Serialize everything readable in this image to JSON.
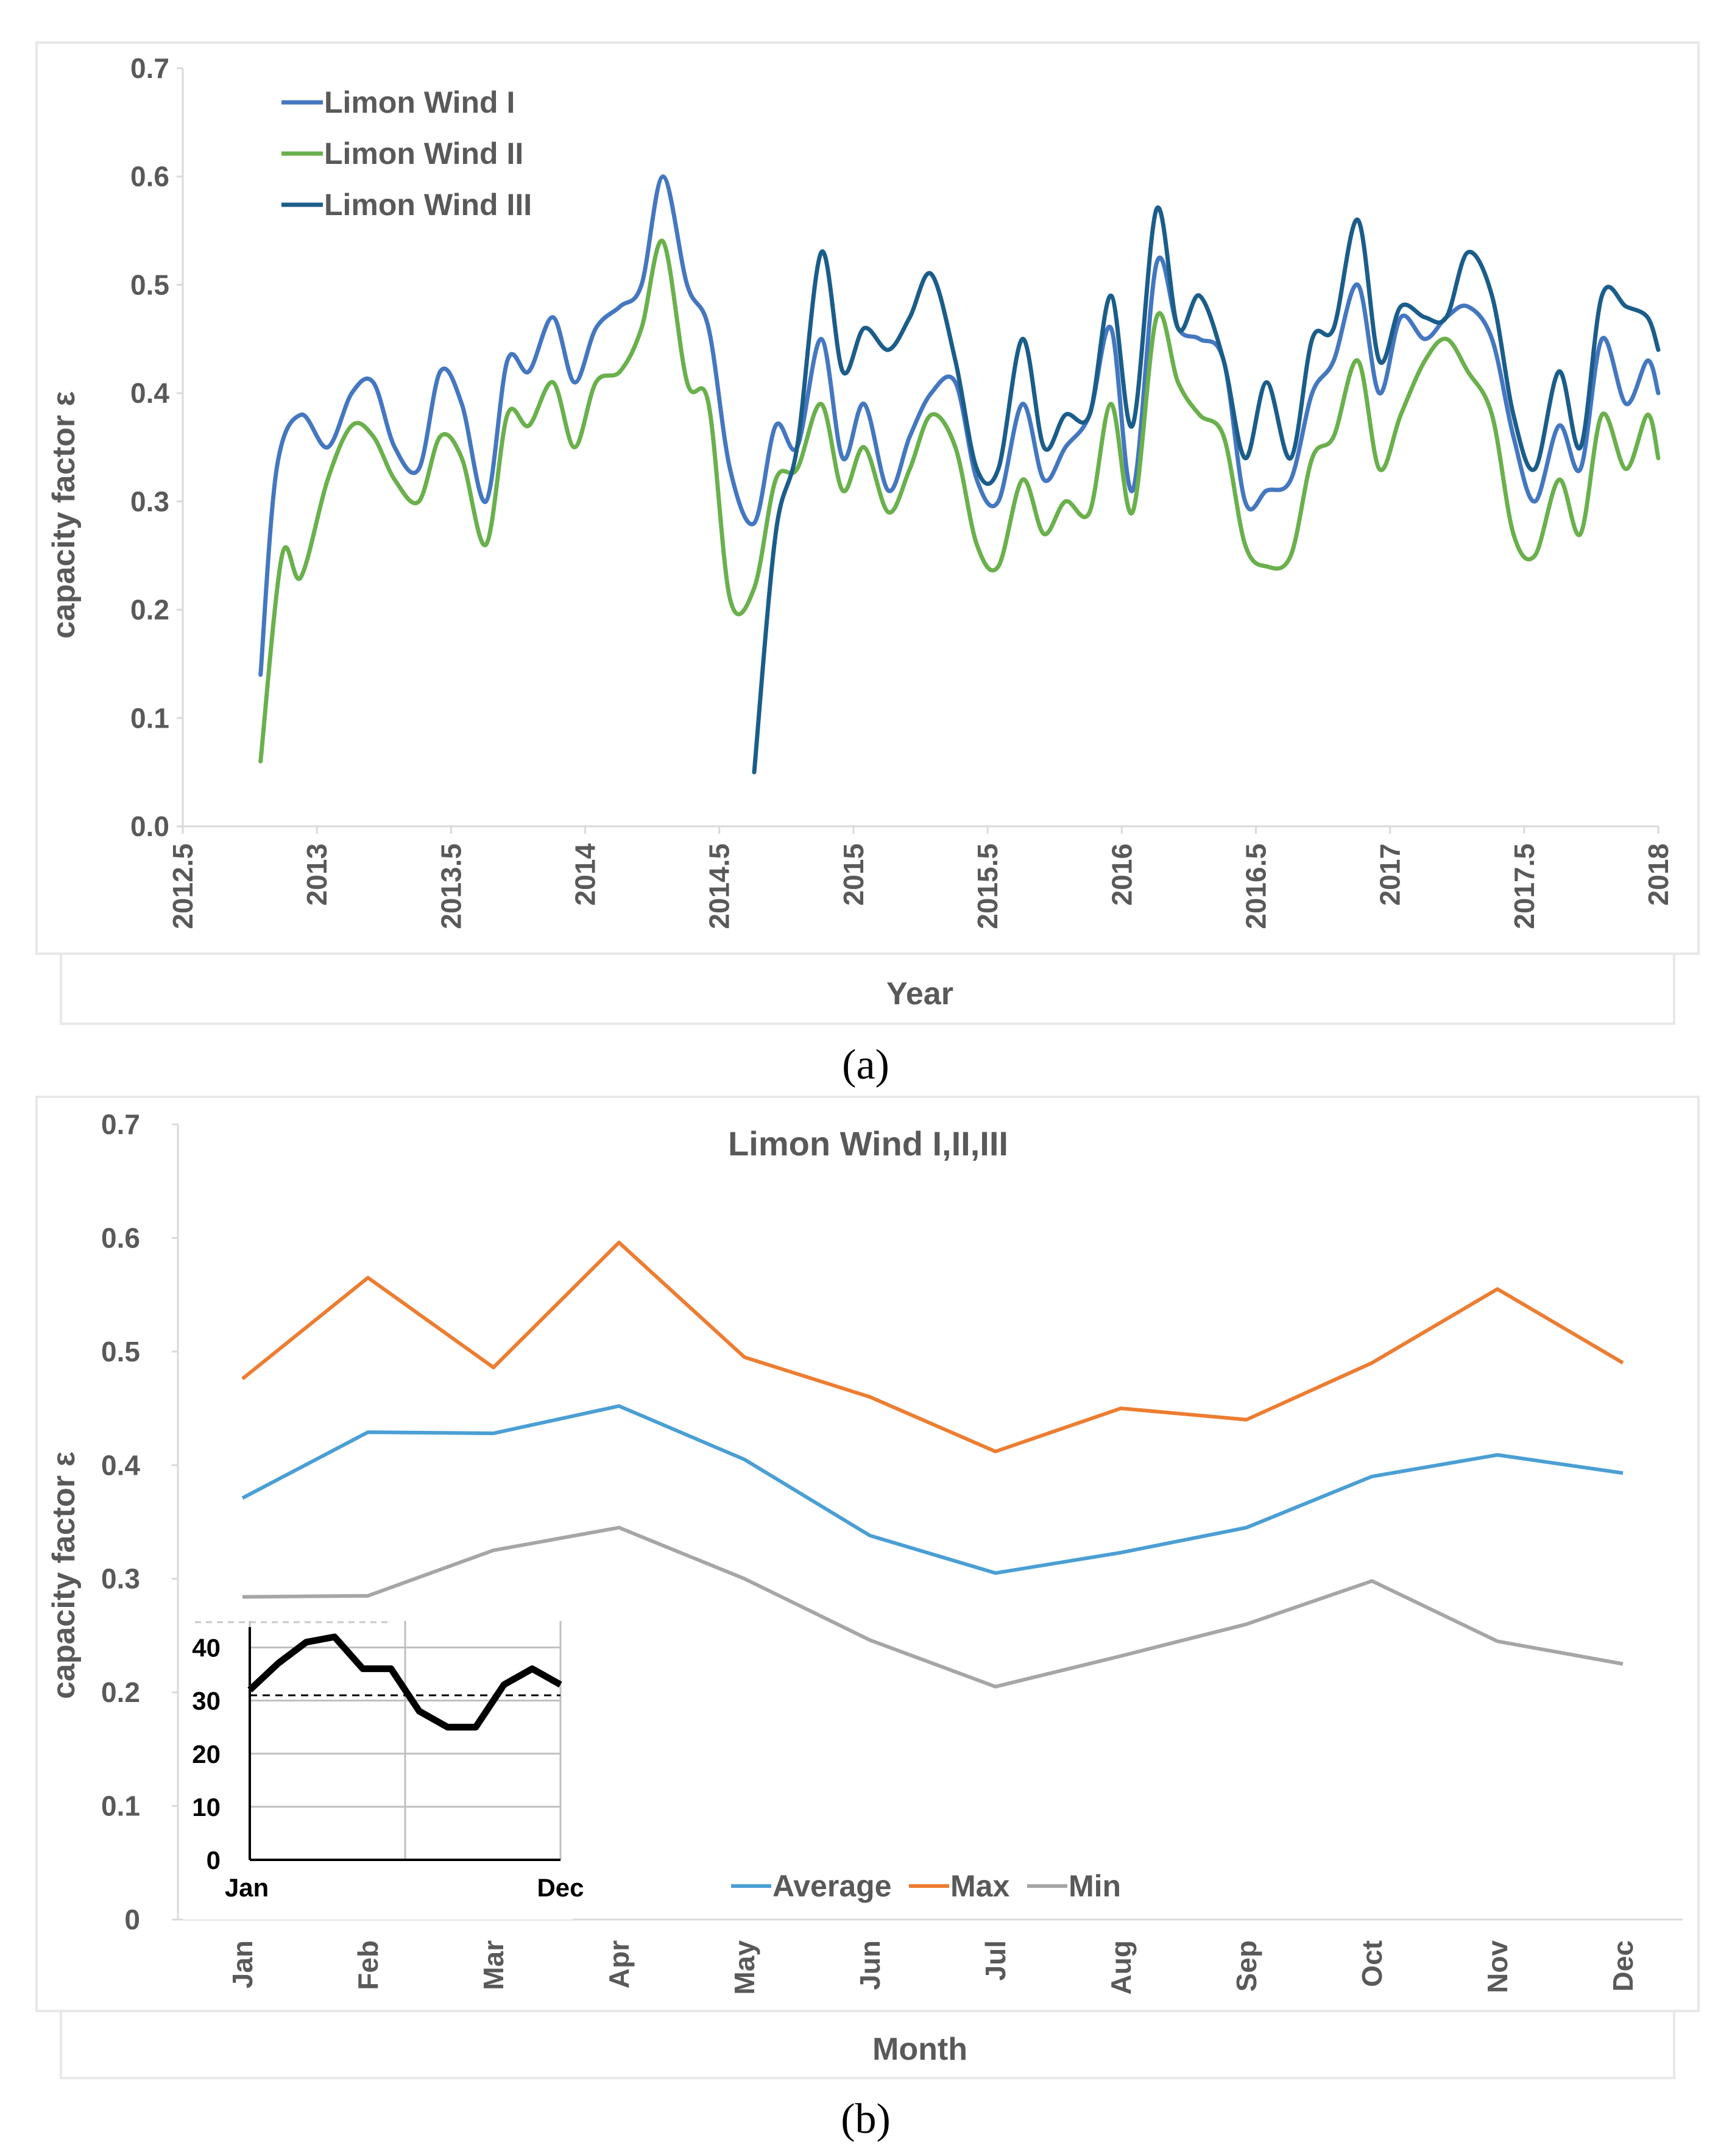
{
  "panel_a_caption": "(a)",
  "panel_b_caption": "(b)",
  "colors": {
    "limon1": "#4477c0",
    "limon2": "#6ab04c",
    "limon3": "#1b5d8a",
    "average": "#4a9fd4",
    "max": "#ed7d31",
    "min": "#a6a6a6",
    "inset": "#000000"
  },
  "chart_data": [
    {
      "type": "line",
      "title": "",
      "xlabel": "Year",
      "ylabel": "capacity factor ε",
      "xlim": [
        2012.5,
        2018
      ],
      "ylim": [
        0,
        0.7
      ],
      "xticks": [
        "2012.5",
        "2013",
        "2013.5",
        "2014",
        "2014.5",
        "2015",
        "2015.5",
        "2016",
        "2016.5",
        "2017",
        "2017.5",
        "2018"
      ],
      "yticks": [
        "0.0",
        "0.1",
        "0.2",
        "0.3",
        "0.4",
        "0.5",
        "0.6",
        "0.7"
      ],
      "legend_position": "top-left",
      "series": [
        {
          "name": "Limon Wind I",
          "x": [
            2012.79,
            2012.85,
            2012.94,
            2013.04,
            2013.13,
            2013.21,
            2013.29,
            2013.38,
            2013.46,
            2013.54,
            2013.63,
            2013.71,
            2013.79,
            2013.88,
            2013.96,
            2014.04,
            2014.13,
            2014.21,
            2014.29,
            2014.38,
            2014.46,
            2014.54,
            2014.63,
            2014.71,
            2014.79,
            2014.88,
            2014.96,
            2015.04,
            2015.13,
            2015.21,
            2015.29,
            2015.38,
            2015.46,
            2015.54,
            2015.63,
            2015.71,
            2015.79,
            2015.88,
            2015.96,
            2016.04,
            2016.13,
            2016.21,
            2016.29,
            2016.38,
            2016.46,
            2016.54,
            2016.63,
            2016.71,
            2016.79,
            2016.88,
            2016.96,
            2017.04,
            2017.13,
            2017.21,
            2017.29,
            2017.38,
            2017.46,
            2017.54,
            2017.63,
            2017.71,
            2017.79,
            2017.88,
            2017.96,
            2018.0
          ],
          "values": [
            0.14,
            0.33,
            0.38,
            0.35,
            0.4,
            0.41,
            0.35,
            0.33,
            0.42,
            0.39,
            0.3,
            0.43,
            0.42,
            0.47,
            0.41,
            0.46,
            0.48,
            0.5,
            0.6,
            0.5,
            0.46,
            0.33,
            0.28,
            0.37,
            0.35,
            0.45,
            0.34,
            0.39,
            0.31,
            0.36,
            0.4,
            0.41,
            0.32,
            0.3,
            0.39,
            0.32,
            0.35,
            0.38,
            0.46,
            0.31,
            0.52,
            0.46,
            0.45,
            0.43,
            0.3,
            0.31,
            0.32,
            0.4,
            0.43,
            0.5,
            0.4,
            0.47,
            0.45,
            0.47,
            0.48,
            0.45,
            0.36,
            0.3,
            0.37,
            0.33,
            0.45,
            0.39,
            0.43,
            0.4
          ]
        },
        {
          "name": "Limon Wind II",
          "x": [
            2012.79,
            2012.87,
            2012.94,
            2013.04,
            2013.13,
            2013.21,
            2013.29,
            2013.38,
            2013.46,
            2013.54,
            2013.63,
            2013.71,
            2013.79,
            2013.88,
            2013.96,
            2014.04,
            2014.13,
            2014.21,
            2014.29,
            2014.38,
            2014.46,
            2014.54,
            2014.63,
            2014.71,
            2014.79,
            2014.88,
            2014.96,
            2015.04,
            2015.13,
            2015.21,
            2015.29,
            2015.38,
            2015.46,
            2015.54,
            2015.63,
            2015.71,
            2015.79,
            2015.88,
            2015.96,
            2016.04,
            2016.13,
            2016.21,
            2016.29,
            2016.38,
            2016.46,
            2016.54,
            2016.63,
            2016.71,
            2016.79,
            2016.88,
            2016.96,
            2017.04,
            2017.13,
            2017.21,
            2017.29,
            2017.38,
            2017.46,
            2017.54,
            2017.63,
            2017.71,
            2017.79,
            2017.88,
            2017.96,
            2018.0
          ],
          "values": [
            0.06,
            0.25,
            0.23,
            0.32,
            0.37,
            0.36,
            0.32,
            0.3,
            0.36,
            0.34,
            0.26,
            0.38,
            0.37,
            0.41,
            0.35,
            0.41,
            0.42,
            0.46,
            0.54,
            0.41,
            0.39,
            0.21,
            0.22,
            0.32,
            0.33,
            0.39,
            0.31,
            0.35,
            0.29,
            0.33,
            0.38,
            0.35,
            0.26,
            0.24,
            0.32,
            0.27,
            0.3,
            0.29,
            0.39,
            0.29,
            0.47,
            0.41,
            0.38,
            0.36,
            0.26,
            0.24,
            0.25,
            0.34,
            0.36,
            0.43,
            0.33,
            0.38,
            0.43,
            0.45,
            0.42,
            0.38,
            0.27,
            0.25,
            0.32,
            0.27,
            0.38,
            0.33,
            0.38,
            0.34
          ]
        },
        {
          "name": "Limon Wind III",
          "x": [
            2014.63,
            2014.71,
            2014.79,
            2014.88,
            2014.96,
            2015.04,
            2015.13,
            2015.21,
            2015.29,
            2015.38,
            2015.46,
            2015.54,
            2015.63,
            2015.71,
            2015.79,
            2015.88,
            2015.96,
            2016.04,
            2016.13,
            2016.21,
            2016.29,
            2016.38,
            2016.46,
            2016.54,
            2016.63,
            2016.71,
            2016.79,
            2016.88,
            2016.96,
            2017.04,
            2017.13,
            2017.21,
            2017.29,
            2017.38,
            2017.46,
            2017.54,
            2017.63,
            2017.71,
            2017.79,
            2017.88,
            2017.96,
            2018.0
          ],
          "values": [
            0.05,
            0.27,
            0.35,
            0.53,
            0.42,
            0.46,
            0.44,
            0.47,
            0.51,
            0.43,
            0.33,
            0.33,
            0.45,
            0.35,
            0.38,
            0.38,
            0.49,
            0.37,
            0.57,
            0.46,
            0.49,
            0.43,
            0.34,
            0.41,
            0.34,
            0.45,
            0.46,
            0.56,
            0.43,
            0.48,
            0.47,
            0.47,
            0.53,
            0.49,
            0.38,
            0.33,
            0.42,
            0.35,
            0.49,
            0.48,
            0.47,
            0.44
          ]
        }
      ]
    },
    {
      "type": "line",
      "title": "Limon Wind I,II,III",
      "xlabel": "Month",
      "ylabel": "capacity factor ε",
      "ylim": [
        0,
        0.7
      ],
      "yticks": [
        "0",
        "0.1",
        "0.2",
        "0.3",
        "0.4",
        "0.5",
        "0.6",
        "0.7"
      ],
      "categories": [
        "Jan",
        "Feb",
        "Mar",
        "Apr",
        "May",
        "Jun",
        "Jul",
        "Aug",
        "Sep",
        "Oct",
        "Nov",
        "Dec"
      ],
      "legend_position": "bottom-center",
      "series": [
        {
          "name": "Average",
          "values": [
            0.371,
            0.429,
            0.428,
            0.452,
            0.405,
            0.338,
            0.305,
            0.323,
            0.345,
            0.39,
            0.409,
            0.393
          ]
        },
        {
          "name": "Max",
          "values": [
            0.476,
            0.565,
            0.486,
            0.596,
            0.495,
            0.46,
            0.412,
            0.45,
            0.44,
            0.49,
            0.555,
            0.49
          ]
        },
        {
          "name": "Min",
          "values": [
            0.284,
            0.285,
            0.325,
            0.345,
            0.3,
            0.246,
            0.205,
            0.232,
            0.26,
            0.298,
            0.245,
            0.225
          ]
        }
      ]
    },
    {
      "type": "line",
      "title": "",
      "xlabel": "",
      "ylabel": "",
      "ylim": [
        0,
        45
      ],
      "yticks": [
        "0",
        "10",
        "20",
        "30",
        "40"
      ],
      "x_endpoint_labels": [
        "Jan",
        "Dec"
      ],
      "reference_line": 31,
      "series": [
        {
          "name": "inset",
          "values": [
            32,
            37,
            41,
            42,
            36,
            36,
            28,
            25,
            25,
            33,
            36,
            33
          ]
        }
      ]
    }
  ]
}
